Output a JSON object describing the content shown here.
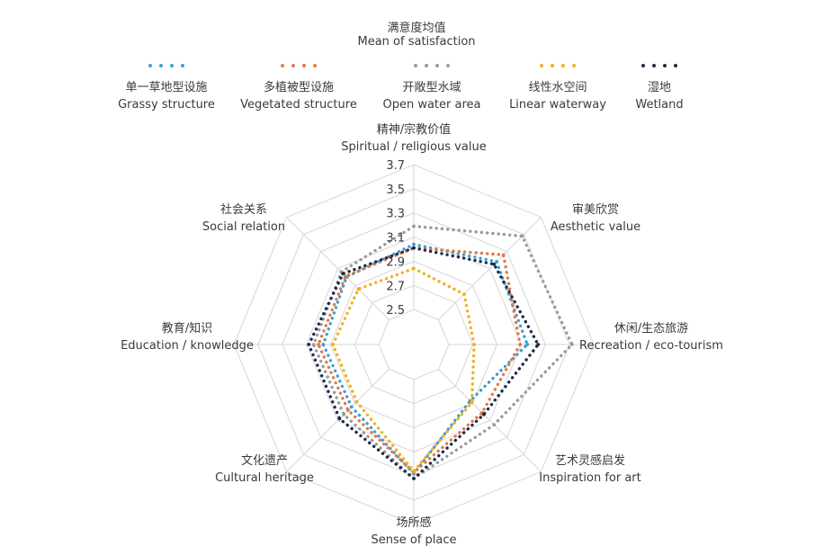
{
  "title": {
    "zh": "满意度均值",
    "en": "Mean of satisfaction"
  },
  "chart_data": {
    "type": "radar",
    "axes": [
      {
        "zh": "精神/宗教价值",
        "en": "Spiritual / religious value"
      },
      {
        "zh": "审美欣赏",
        "en": "Aesthetic value"
      },
      {
        "zh": "休闲/生态旅游",
        "en": "Recreation / eco-tourism"
      },
      {
        "zh": "艺术灵感启发",
        "en": "Inspiration for art"
      },
      {
        "zh": "场所感",
        "en": "Sense of place"
      },
      {
        "zh": "文化遗产",
        "en": "Cultural heritage"
      },
      {
        "zh": "教育/知识",
        "en": "Education / knowledge"
      },
      {
        "zh": "社会关系",
        "en": "Social relation"
      }
    ],
    "rmin": 2.3,
    "rmax": 3.7,
    "ticks": [
      2.5,
      2.7,
      2.9,
      3.1,
      3.3,
      3.5,
      3.7
    ],
    "series": [
      {
        "zh": "单一草地型设施",
        "en": "Grassy structure",
        "color": "#3a9fd6",
        "values": [
          3.04,
          3.18,
          3.15,
          2.87,
          3.28,
          2.94,
          2.96,
          3.0
        ]
      },
      {
        "zh": "多植被型设施",
        "en": "Vegetated structure",
        "color": "#e07b45",
        "values": [
          3.01,
          3.26,
          3.09,
          3.01,
          3.27,
          2.98,
          3.0,
          3.01
        ]
      },
      {
        "zh": "开敞型水域",
        "en": "Open water area",
        "color": "#9a9a9a",
        "values": [
          3.19,
          3.48,
          3.52,
          3.15,
          3.32,
          3.03,
          3.04,
          3.06
        ]
      },
      {
        "zh": "线性水空间",
        "en": "Linear waterway",
        "color": "#f2b01e",
        "values": [
          2.84,
          2.8,
          2.71,
          2.89,
          3.26,
          2.88,
          2.88,
          2.86
        ]
      },
      {
        "zh": "湿地",
        "en": "Wetland",
        "color": "#1b2a4a",
        "values": [
          3.01,
          3.15,
          3.24,
          3.03,
          3.32,
          3.08,
          3.08,
          3.04
        ]
      }
    ]
  }
}
